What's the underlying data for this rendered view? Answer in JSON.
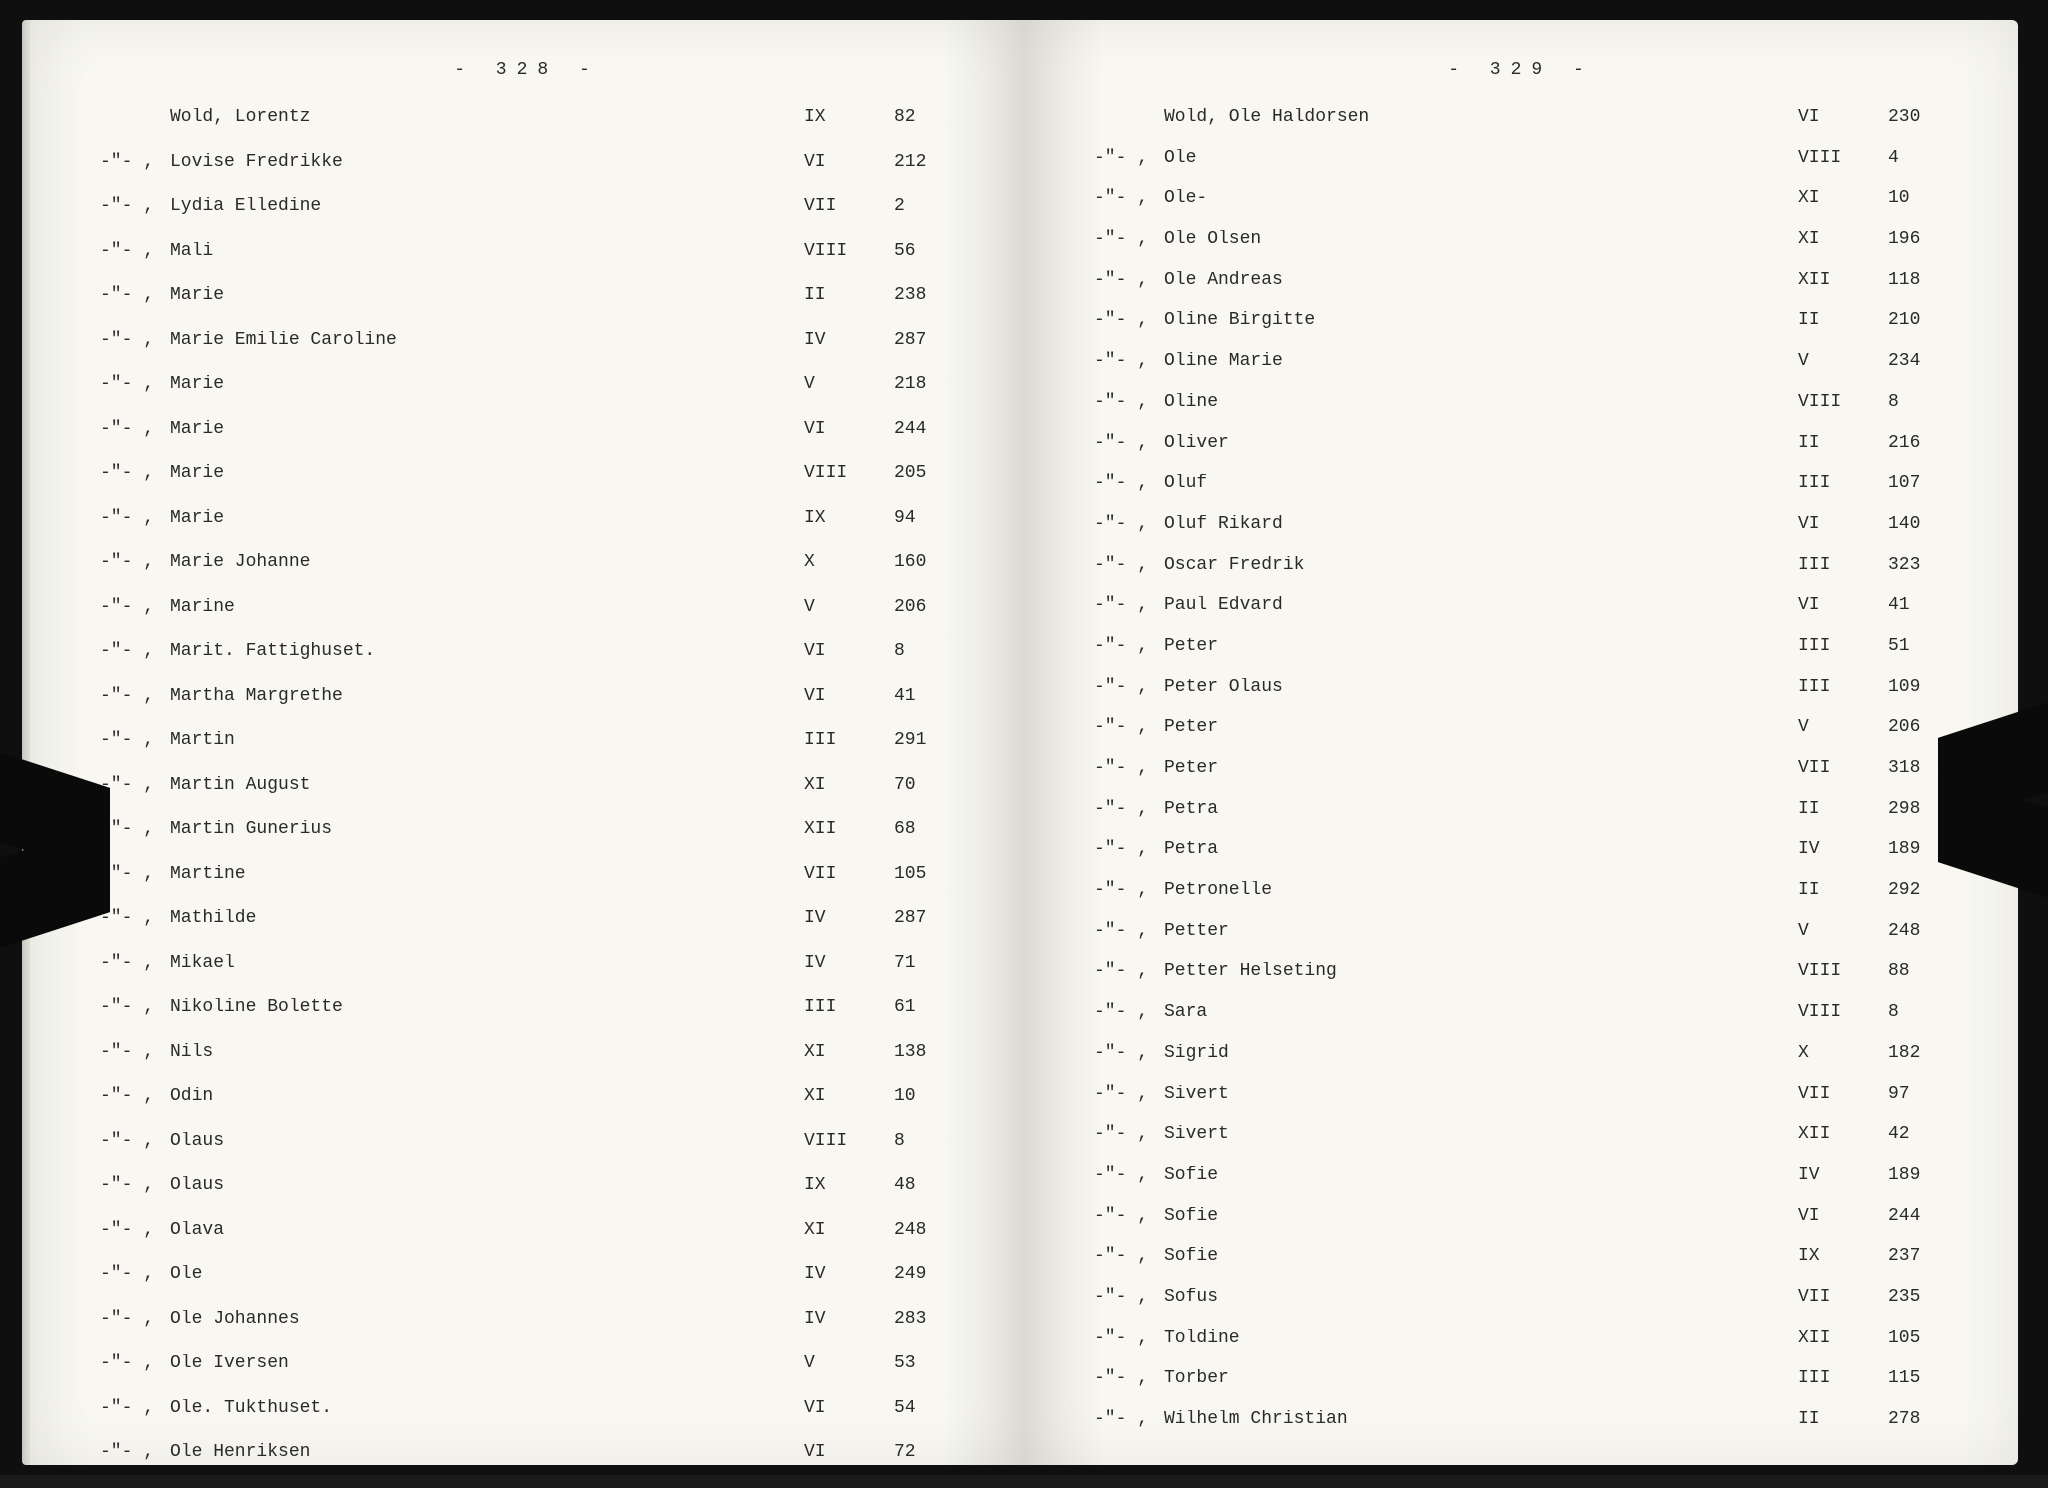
{
  "leftPage": {
    "number": "- 328 -",
    "rows": [
      {
        "ditto": "",
        "name": "Wold, Lorentz",
        "col": "IX",
        "num": "82"
      },
      {
        "ditto": "-\"- ,",
        "name": "Lovise Fredrikke",
        "col": "VI",
        "num": "212"
      },
      {
        "ditto": "-\"- ,",
        "name": "Lydia Elledine",
        "col": "VII",
        "num": "2"
      },
      {
        "ditto": "-\"- ,",
        "name": "Mali",
        "col": "VIII",
        "num": "56"
      },
      {
        "ditto": "-\"- ,",
        "name": "Marie",
        "col": "II",
        "num": "238"
      },
      {
        "ditto": "-\"- ,",
        "name": "Marie Emilie Caroline",
        "col": "IV",
        "num": "287"
      },
      {
        "ditto": "-\"- ,",
        "name": "Marie",
        "col": "V",
        "num": "218"
      },
      {
        "ditto": "-\"- ,",
        "name": "Marie",
        "col": "VI",
        "num": "244"
      },
      {
        "ditto": "-\"- ,",
        "name": "Marie",
        "col": "VIII",
        "num": "205"
      },
      {
        "ditto": "-\"- ,",
        "name": "Marie",
        "col": "IX",
        "num": "94"
      },
      {
        "ditto": "-\"- ,",
        "name": "Marie Johanne",
        "col": "X",
        "num": "160"
      },
      {
        "ditto": "-\"- ,",
        "name": "Marine",
        "col": "V",
        "num": "206"
      },
      {
        "ditto": "-\"- ,",
        "name": "Marit. Fattighuset.",
        "col": "VI",
        "num": "8"
      },
      {
        "ditto": "-\"- ,",
        "name": "Martha Margrethe",
        "col": "VI",
        "num": "41"
      },
      {
        "ditto": "-\"- ,",
        "name": "Martin",
        "col": "III",
        "num": "291"
      },
      {
        "ditto": "-\"- ,",
        "name": "Martin August",
        "col": "XI",
        "num": "70"
      },
      {
        "ditto": "-\"- ,",
        "name": "Martin Gunerius",
        "col": "XII",
        "num": "68"
      },
      {
        "ditto": "-\"- ,",
        "name": "Martine",
        "col": "VII",
        "num": "105"
      },
      {
        "ditto": "-\"- ,",
        "name": "Mathilde",
        "col": "IV",
        "num": "287"
      },
      {
        "ditto": "-\"- ,",
        "name": "Mikael",
        "col": "IV",
        "num": "71"
      },
      {
        "ditto": "-\"- ,",
        "name": "Nikoline Bolette",
        "col": "III",
        "num": "61"
      },
      {
        "ditto": "-\"- ,",
        "name": "Nils",
        "col": "XI",
        "num": "138"
      },
      {
        "ditto": "-\"- ,",
        "name": "Odin",
        "col": "XI",
        "num": "10"
      },
      {
        "ditto": "-\"- ,",
        "name": "Olaus",
        "col": "VIII",
        "num": "8"
      },
      {
        "ditto": "-\"- ,",
        "name": "Olaus",
        "col": "IX",
        "num": "48"
      },
      {
        "ditto": "-\"- ,",
        "name": "Olava",
        "col": "XI",
        "num": "248"
      },
      {
        "ditto": "-\"- ,",
        "name": "Ole",
        "col": "IV",
        "num": "249"
      },
      {
        "ditto": "-\"- ,",
        "name": "Ole Johannes",
        "col": "IV",
        "num": "283"
      },
      {
        "ditto": "-\"- ,",
        "name": "Ole Iversen",
        "col": "V",
        "num": "53"
      },
      {
        "ditto": "-\"- ,",
        "name": "Ole. Tukthuset.",
        "col": "VI",
        "num": "54"
      },
      {
        "ditto": "-\"- ,",
        "name": "Ole Henriksen",
        "col": "VI",
        "num": "72"
      }
    ]
  },
  "rightPage": {
    "number": "- 329 -",
    "rows": [
      {
        "ditto": "",
        "name": "Wold, Ole Haldorsen",
        "col": "VI",
        "num": "230"
      },
      {
        "ditto": "-\"- ,",
        "name": "Ole",
        "col": "VIII",
        "num": "4"
      },
      {
        "ditto": "-\"- ,",
        "name": "Ole-",
        "col": "XI",
        "num": "10"
      },
      {
        "ditto": "-\"- ,",
        "name": "Ole Olsen",
        "col": "XI",
        "num": "196"
      },
      {
        "ditto": "-\"- ,",
        "name": "Ole Andreas",
        "col": "XII",
        "num": "118"
      },
      {
        "ditto": "-\"- ,",
        "name": "Oline Birgitte",
        "col": "II",
        "num": "210"
      },
      {
        "ditto": "-\"- ,",
        "name": "Oline Marie",
        "col": "V",
        "num": "234"
      },
      {
        "ditto": "-\"- ,",
        "name": "Oline",
        "col": "VIII",
        "num": "8"
      },
      {
        "ditto": "-\"- ,",
        "name": "Oliver",
        "col": "II",
        "num": "216"
      },
      {
        "ditto": "-\"- ,",
        "name": "Oluf",
        "col": "III",
        "num": "107"
      },
      {
        "ditto": "-\"- ,",
        "name": "Oluf Rikard",
        "col": "VI",
        "num": "140"
      },
      {
        "ditto": "-\"- ,",
        "name": "Oscar Fredrik",
        "col": "III",
        "num": "323"
      },
      {
        "ditto": "-\"- ,",
        "name": "Paul Edvard",
        "col": "VI",
        "num": "41"
      },
      {
        "ditto": "-\"- ,",
        "name": "Peter",
        "col": "III",
        "num": "51"
      },
      {
        "ditto": "-\"- ,",
        "name": "Peter Olaus",
        "col": "III",
        "num": "109"
      },
      {
        "ditto": "-\"- ,",
        "name": "Peter",
        "col": "V",
        "num": "206"
      },
      {
        "ditto": "-\"- ,",
        "name": "Peter",
        "col": "VII",
        "num": "318"
      },
      {
        "ditto": "-\"- ,",
        "name": "Petra",
        "col": "II",
        "num": "298"
      },
      {
        "ditto": "-\"- ,",
        "name": "Petra",
        "col": "IV",
        "num": "189"
      },
      {
        "ditto": "-\"- ,",
        "name": "Petronelle",
        "col": "II",
        "num": "292"
      },
      {
        "ditto": "-\"- ,",
        "name": "Petter",
        "col": "V",
        "num": "248"
      },
      {
        "ditto": "-\"- ,",
        "name": "Petter Helseting",
        "col": "VIII",
        "num": "88"
      },
      {
        "ditto": "-\"- ,",
        "name": "Sara",
        "col": "VIII",
        "num": "8"
      },
      {
        "ditto": "-\"- ,",
        "name": "Sigrid",
        "col": "X",
        "num": "182"
      },
      {
        "ditto": "-\"- ,",
        "name": "Sivert",
        "col": "VII",
        "num": "97"
      },
      {
        "ditto": "-\"- ,",
        "name": "Sivert",
        "col": "XII",
        "num": "42"
      },
      {
        "ditto": "-\"- ,",
        "name": "Sofie",
        "col": "IV",
        "num": "189"
      },
      {
        "ditto": "-\"- ,",
        "name": "Sofie",
        "col": "VI",
        "num": "244"
      },
      {
        "ditto": "-\"- ,",
        "name": "Sofie",
        "col": "IX",
        "num": "237"
      },
      {
        "ditto": "-\"- ,",
        "name": "Sofus",
        "col": "VII",
        "num": "235"
      },
      {
        "ditto": "-\"- ,",
        "name": "Toldine",
        "col": "XII",
        "num": "105"
      },
      {
        "ditto": "-\"- ,",
        "name": "Torber",
        "col": "III",
        "num": "115"
      },
      {
        "ditto": "-\"- ,",
        "name": "Wilhelm Christian",
        "col": "II",
        "num": "278"
      }
    ]
  }
}
